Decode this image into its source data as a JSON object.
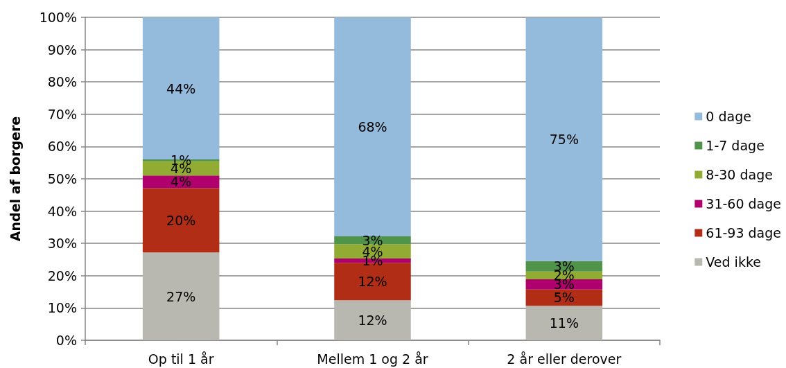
{
  "chart_data": {
    "type": "bar",
    "stacked": true,
    "ylabel": "Andel af borgere",
    "categories": [
      "Op til 1 år",
      "Mellem 1 og 2 år",
      "2 år eller derover"
    ],
    "series": [
      {
        "name": "Ved ikke",
        "color": "#b8b8b0",
        "values": [
          27.2,
          12.4,
          10.7
        ],
        "value_labels": [
          "27%",
          "12%",
          "11%"
        ]
      },
      {
        "name": "61-93 dage",
        "color": "#b22d15",
        "values": [
          19.9,
          11.6,
          5.0
        ],
        "value_labels": [
          "20%",
          "12%",
          "5%"
        ]
      },
      {
        "name": "31-60 dage",
        "color": "#b0006e",
        "values": [
          3.9,
          1.3,
          3.2
        ],
        "value_labels": [
          "4%",
          "1%",
          "3%"
        ]
      },
      {
        "name": "8-30 dage",
        "color": "#92ab33",
        "values": [
          4.4,
          4.4,
          2.4
        ],
        "value_labels": [
          "4%",
          "4%",
          "2%"
        ]
      },
      {
        "name": "1-7 dage",
        "color": "#50944a",
        "values": [
          0.6,
          2.5,
          3.2
        ],
        "value_labels": [
          "1%",
          "3%",
          "3%"
        ]
      },
      {
        "name": "0 dage",
        "color": "#94badc",
        "values": [
          44.0,
          67.8,
          75.4
        ],
        "value_labels": [
          "44%",
          "68%",
          "75%"
        ]
      }
    ],
    "ylim": [
      0,
      100
    ],
    "yticks": [
      {
        "value": 0,
        "label": "0%"
      },
      {
        "value": 10,
        "label": "10%"
      },
      {
        "value": 20,
        "label": "20%"
      },
      {
        "value": 30,
        "label": "30%"
      },
      {
        "value": 40,
        "label": "40%"
      },
      {
        "value": 50,
        "label": "50%"
      },
      {
        "value": 60,
        "label": "60%"
      },
      {
        "value": 70,
        "label": "70%"
      },
      {
        "value": 80,
        "label": "80%"
      },
      {
        "value": 90,
        "label": "90%"
      },
      {
        "value": 100,
        "label": "100%"
      }
    ],
    "grid": "y",
    "legend": "right"
  }
}
